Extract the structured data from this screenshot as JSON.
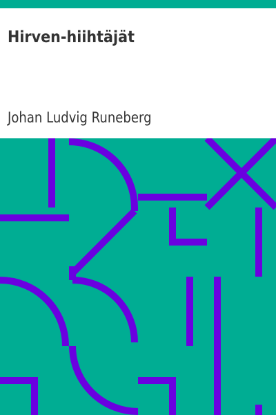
{
  "cover": {
    "title": "Hirven-hiihtäjät",
    "author": "Johan Ludvig Runeberg"
  },
  "colors": {
    "background": "#00ad93",
    "pattern_stroke": "#6a00e0",
    "text": "#333333",
    "title_area": "#ffffff"
  }
}
